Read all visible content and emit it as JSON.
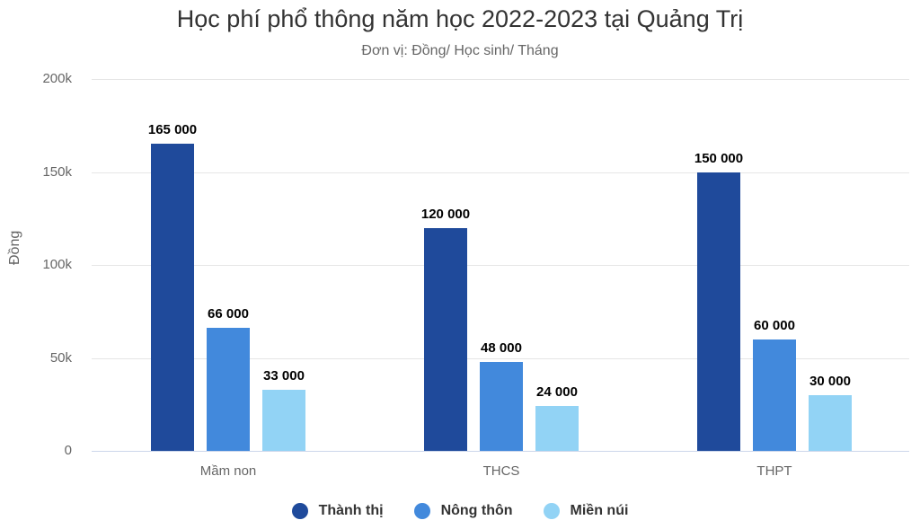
{
  "chart_data": {
    "type": "bar",
    "title": "Học phí phổ thông năm học 2022-2023 tại Quảng Trị",
    "subtitle": "Đơn vị: Đồng/ Học sinh/ Tháng",
    "xlabel": "",
    "ylabel": "Đồng",
    "ylim": [
      0,
      200000
    ],
    "yticks": [
      "0",
      "50k",
      "100k",
      "150k",
      "200k"
    ],
    "grid": true,
    "legend_position": "bottom",
    "categories": [
      "Mầm non",
      "THCS",
      "THPT"
    ],
    "series": [
      {
        "name": "Thành thị",
        "color": "#1f4a9b",
        "values": [
          165000,
          120000,
          150000
        ],
        "labels": [
          "165 000",
          "120 000",
          "150 000"
        ]
      },
      {
        "name": "Nông thôn",
        "color": "#4289dc",
        "values": [
          66000,
          48000,
          60000
        ],
        "labels": [
          "66 000",
          "48 000",
          "60 000"
        ]
      },
      {
        "name": "Miền núi",
        "color": "#92d3f5",
        "values": [
          33000,
          24000,
          30000
        ],
        "labels": [
          "33 000",
          "24 000",
          "30 000"
        ]
      }
    ]
  }
}
